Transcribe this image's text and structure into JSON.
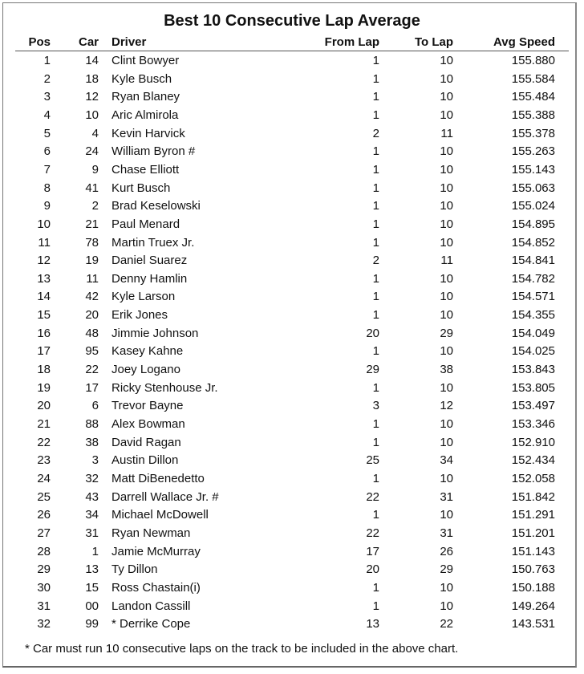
{
  "title": "Best 10 Consecutive Lap Average",
  "columns": {
    "pos": "Pos",
    "car": "Car",
    "driver": "Driver",
    "from_lap": "From Lap",
    "to_lap": "To Lap",
    "avg_speed": "Avg Speed"
  },
  "rows": [
    {
      "pos": "1",
      "car": "14",
      "driver": "Clint Bowyer",
      "from": "1",
      "to": "10",
      "speed": "155.880"
    },
    {
      "pos": "2",
      "car": "18",
      "driver": "Kyle Busch",
      "from": "1",
      "to": "10",
      "speed": "155.584"
    },
    {
      "pos": "3",
      "car": "12",
      "driver": "Ryan Blaney",
      "from": "1",
      "to": "10",
      "speed": "155.484"
    },
    {
      "pos": "4",
      "car": "10",
      "driver": "Aric Almirola",
      "from": "1",
      "to": "10",
      "speed": "155.388"
    },
    {
      "pos": "5",
      "car": "4",
      "driver": "Kevin Harvick",
      "from": "2",
      "to": "11",
      "speed": "155.378"
    },
    {
      "pos": "6",
      "car": "24",
      "driver": "William Byron #",
      "from": "1",
      "to": "10",
      "speed": "155.263"
    },
    {
      "pos": "7",
      "car": "9",
      "driver": "Chase Elliott",
      "from": "1",
      "to": "10",
      "speed": "155.143"
    },
    {
      "pos": "8",
      "car": "41",
      "driver": "Kurt Busch",
      "from": "1",
      "to": "10",
      "speed": "155.063"
    },
    {
      "pos": "9",
      "car": "2",
      "driver": "Brad Keselowski",
      "from": "1",
      "to": "10",
      "speed": "155.024"
    },
    {
      "pos": "10",
      "car": "21",
      "driver": "Paul Menard",
      "from": "1",
      "to": "10",
      "speed": "154.895"
    },
    {
      "pos": "11",
      "car": "78",
      "driver": "Martin Truex Jr.",
      "from": "1",
      "to": "10",
      "speed": "154.852"
    },
    {
      "pos": "12",
      "car": "19",
      "driver": "Daniel Suarez",
      "from": "2",
      "to": "11",
      "speed": "154.841"
    },
    {
      "pos": "13",
      "car": "11",
      "driver": "Denny Hamlin",
      "from": "1",
      "to": "10",
      "speed": "154.782"
    },
    {
      "pos": "14",
      "car": "42",
      "driver": "Kyle Larson",
      "from": "1",
      "to": "10",
      "speed": "154.571"
    },
    {
      "pos": "15",
      "car": "20",
      "driver": "Erik Jones",
      "from": "1",
      "to": "10",
      "speed": "154.355"
    },
    {
      "pos": "16",
      "car": "48",
      "driver": "Jimmie Johnson",
      "from": "20",
      "to": "29",
      "speed": "154.049"
    },
    {
      "pos": "17",
      "car": "95",
      "driver": "Kasey Kahne",
      "from": "1",
      "to": "10",
      "speed": "154.025"
    },
    {
      "pos": "18",
      "car": "22",
      "driver": "Joey Logano",
      "from": "29",
      "to": "38",
      "speed": "153.843"
    },
    {
      "pos": "19",
      "car": "17",
      "driver": "Ricky Stenhouse Jr.",
      "from": "1",
      "to": "10",
      "speed": "153.805"
    },
    {
      "pos": "20",
      "car": "6",
      "driver": "Trevor Bayne",
      "from": "3",
      "to": "12",
      "speed": "153.497"
    },
    {
      "pos": "21",
      "car": "88",
      "driver": "Alex Bowman",
      "from": "1",
      "to": "10",
      "speed": "153.346"
    },
    {
      "pos": "22",
      "car": "38",
      "driver": "David Ragan",
      "from": "1",
      "to": "10",
      "speed": "152.910"
    },
    {
      "pos": "23",
      "car": "3",
      "driver": "Austin Dillon",
      "from": "25",
      "to": "34",
      "speed": "152.434"
    },
    {
      "pos": "24",
      "car": "32",
      "driver": "Matt DiBenedetto",
      "from": "1",
      "to": "10",
      "speed": "152.058"
    },
    {
      "pos": "25",
      "car": "43",
      "driver": "Darrell Wallace Jr. #",
      "from": "22",
      "to": "31",
      "speed": "151.842"
    },
    {
      "pos": "26",
      "car": "34",
      "driver": "Michael McDowell",
      "from": "1",
      "to": "10",
      "speed": "151.291"
    },
    {
      "pos": "27",
      "car": "31",
      "driver": "Ryan Newman",
      "from": "22",
      "to": "31",
      "speed": "151.201"
    },
    {
      "pos": "28",
      "car": "1",
      "driver": "Jamie McMurray",
      "from": "17",
      "to": "26",
      "speed": "151.143"
    },
    {
      "pos": "29",
      "car": "13",
      "driver": "Ty Dillon",
      "from": "20",
      "to": "29",
      "speed": "150.763"
    },
    {
      "pos": "30",
      "car": "15",
      "driver": "Ross Chastain(i)",
      "from": "1",
      "to": "10",
      "speed": "150.188"
    },
    {
      "pos": "31",
      "car": "00",
      "driver": "Landon Cassill",
      "from": "1",
      "to": "10",
      "speed": "149.264"
    },
    {
      "pos": "32",
      "car": "99",
      "driver": "* Derrike Cope",
      "from": "13",
      "to": "22",
      "speed": "143.531"
    }
  ],
  "footnote": "* Car must run 10 consecutive laps on the track to be included in the above chart."
}
